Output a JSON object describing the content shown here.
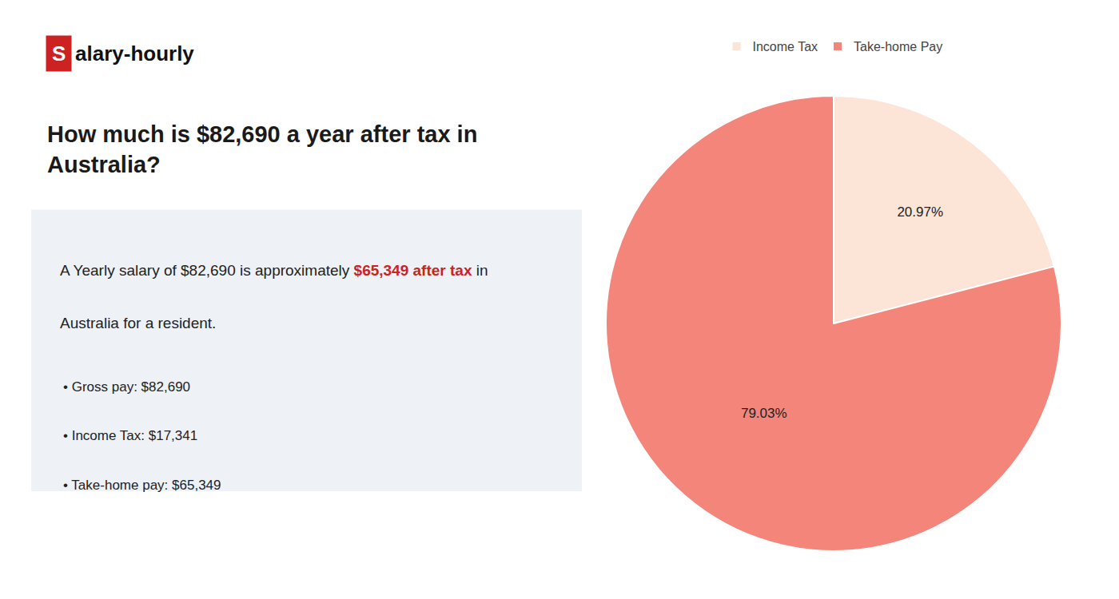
{
  "chart_data": {
    "type": "pie",
    "title": "How much is $82,690 a year after tax in\nAustralia?",
    "categories": [
      "Income Tax",
      "Take-home Pay"
    ],
    "values": [
      20.97,
      79.03
    ],
    "value_labels": [
      "20.97%",
      "79.03%"
    ],
    "colors": [
      "#fce4d6",
      "#f4857a"
    ],
    "data_labels": true,
    "legend": "top",
    "annotations": [
      {
        "text": "S",
        "color": "#cc2222"
      },
      {
        "text": "alary-hourly"
      },
      {
        "text": "A Yearly salary of $82,690 is approximately $65,349 after tax in",
        "highlight": "$65,349 after tax",
        "color": "#cc2222"
      },
      {
        "text": "Australia for a resident."
      },
      {
        "text": "• Gross pay: $82,690"
      },
      {
        "text": "• Income Tax: $17,341"
      },
      {
        "text": "• Take-home pay: $65,349"
      }
    ]
  }
}
